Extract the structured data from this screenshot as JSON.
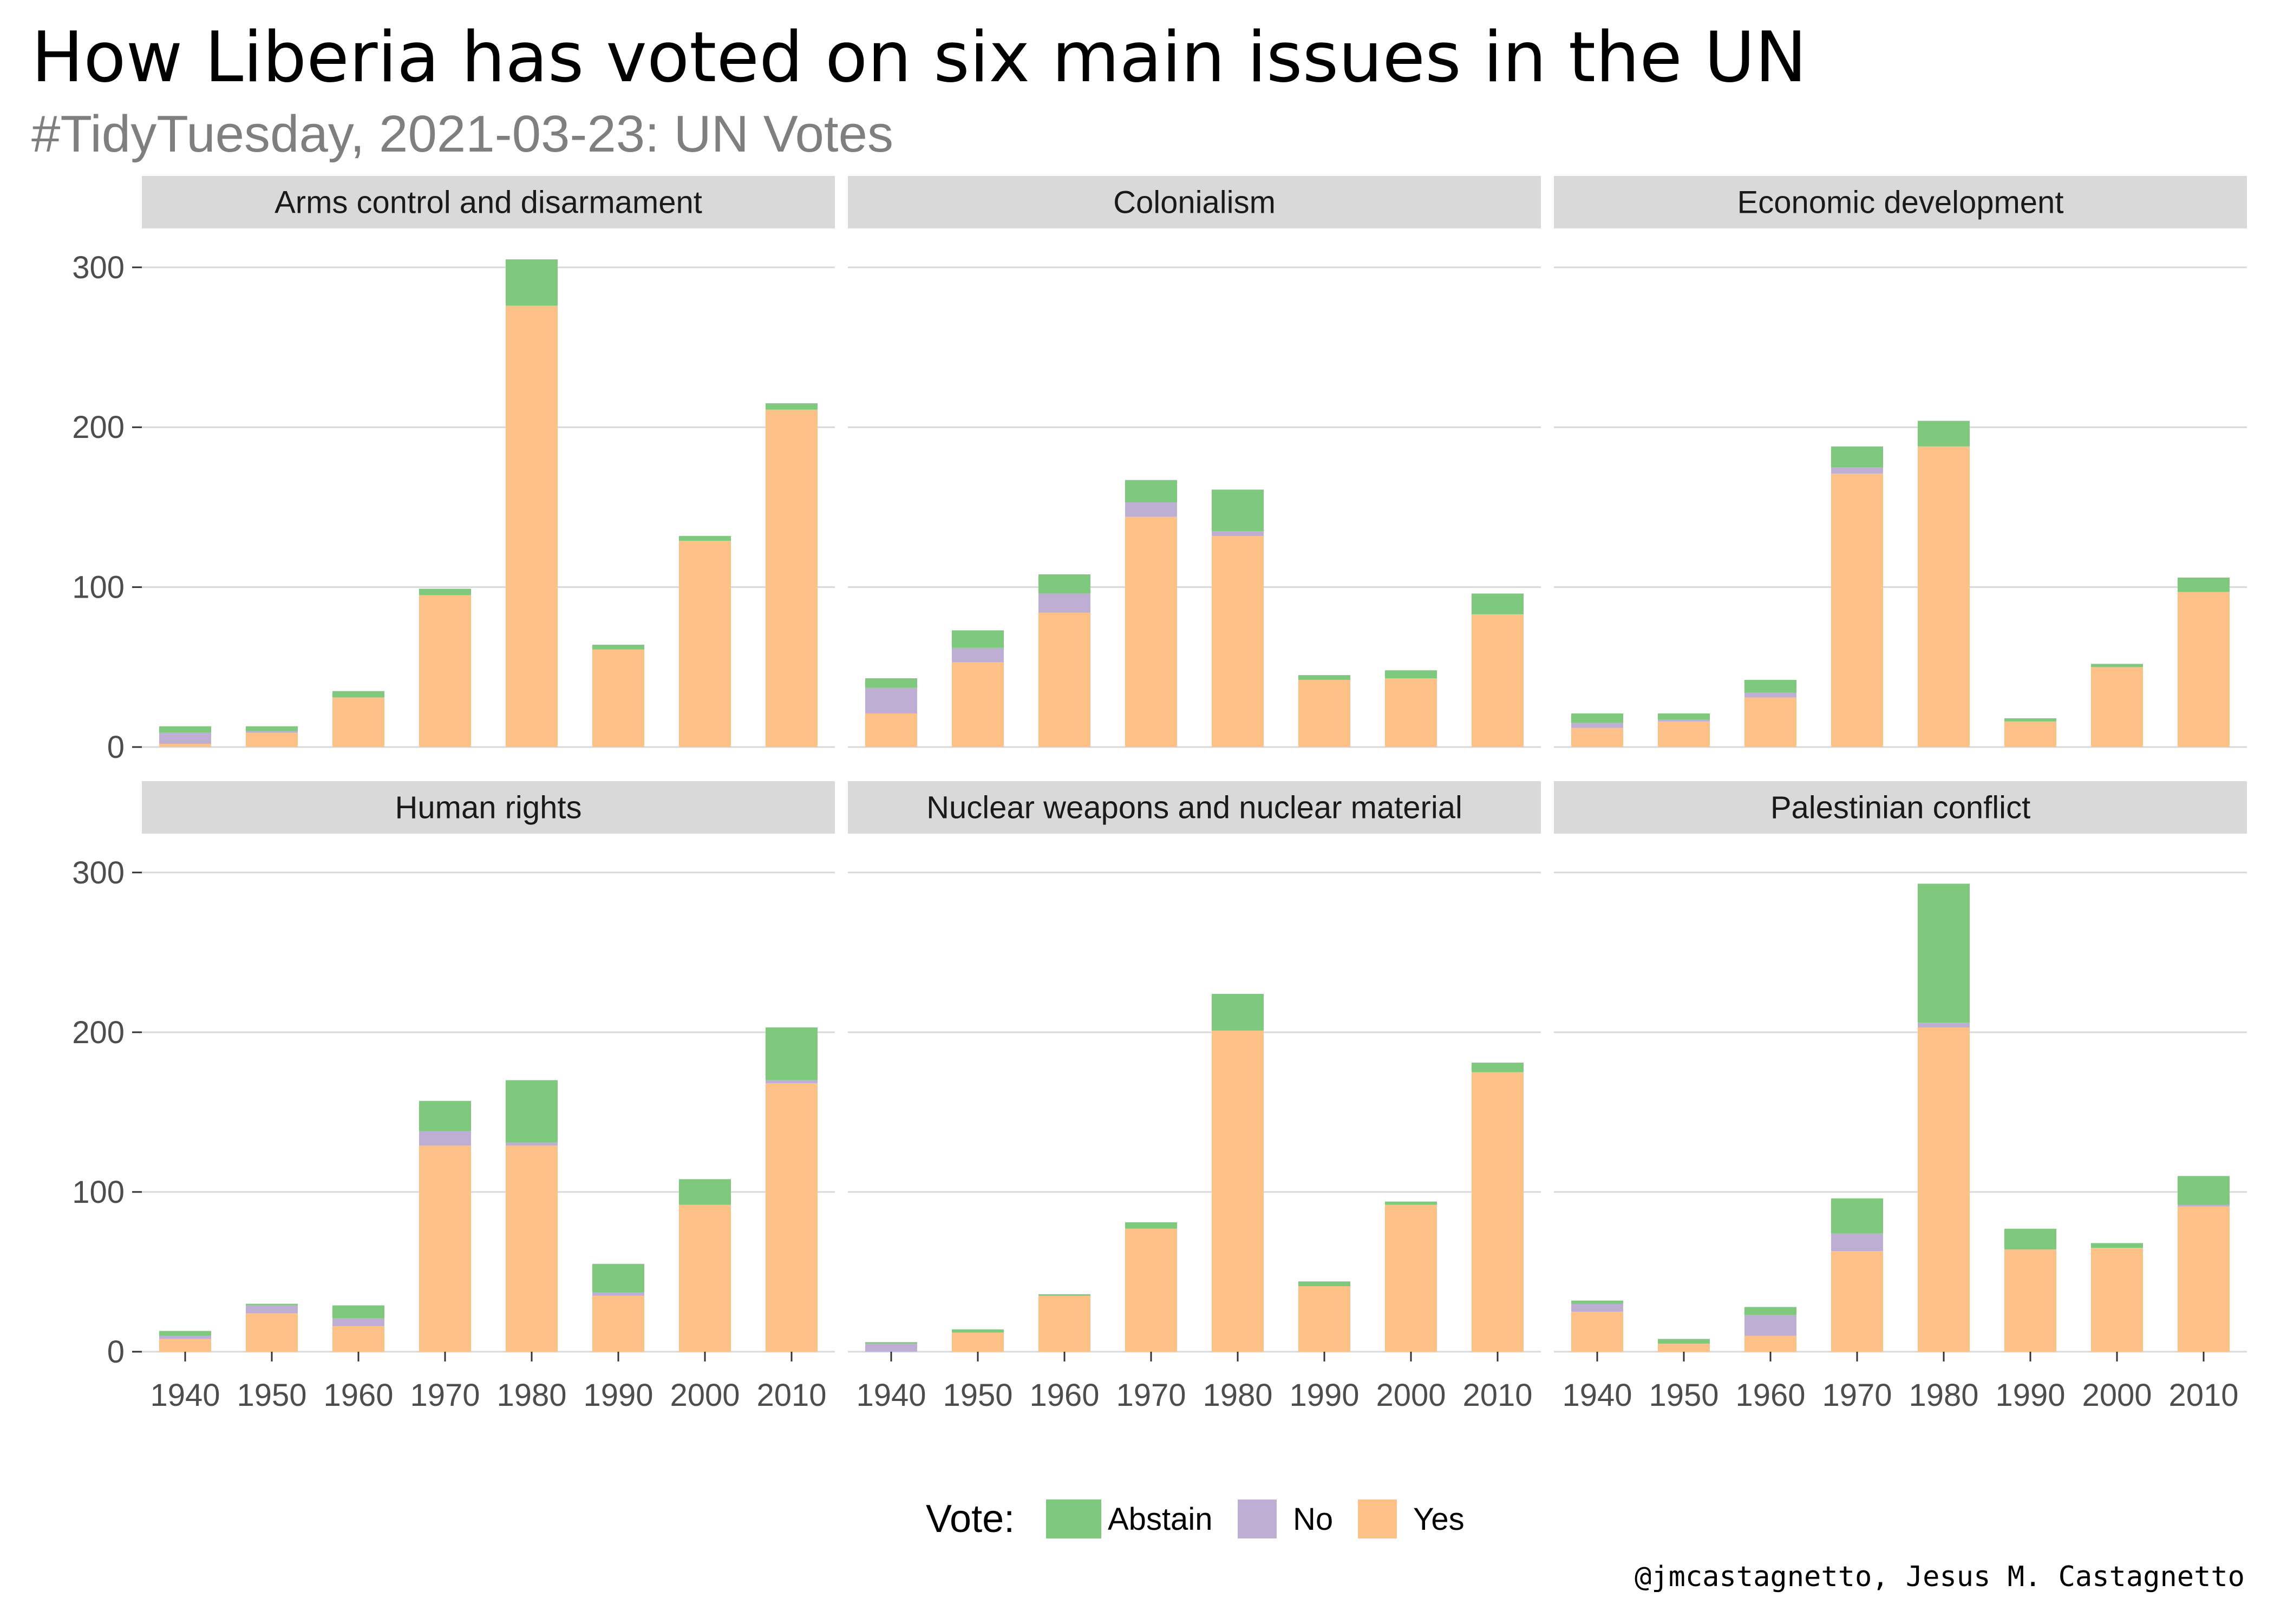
{
  "title": "How Liberia has voted on six main issues in the UN",
  "subtitle": "#TidyTuesday, 2021-03-23: UN Votes",
  "caption": "@jmcastagnetto, Jesus M. Castagnetto",
  "legend": {
    "title": "Vote:",
    "items": [
      {
        "label": "Abstain",
        "color": "#7fc97f"
      },
      {
        "label": "No",
        "color": "#beaed4"
      },
      {
        "label": "Yes",
        "color": "#fdc086"
      }
    ]
  },
  "chart_data": {
    "type": "bar",
    "stacked": true,
    "facet_grid": "2 rows x 3 columns",
    "categories": [
      "1940",
      "1950",
      "1960",
      "1970",
      "1980",
      "1990",
      "2000",
      "2010"
    ],
    "y_ticks": [
      0,
      100,
      200,
      300
    ],
    "ylim": [
      0,
      325
    ],
    "grid": true,
    "legend_position": "bottom",
    "series_order": [
      "Yes",
      "No",
      "Abstain"
    ],
    "colors": {
      "Abstain": "#7fc97f",
      "No": "#beaed4",
      "Yes": "#fdc086"
    },
    "panels": [
      {
        "title": "Arms control and disarmament",
        "series": [
          {
            "name": "Yes",
            "values": [
              2,
              9,
              31,
              95,
              276,
              61,
              129,
              211
            ]
          },
          {
            "name": "No",
            "values": [
              7,
              1,
              0,
              0,
              0,
              0,
              0,
              0
            ]
          },
          {
            "name": "Abstain",
            "values": [
              4,
              3,
              4,
              4,
              29,
              3,
              3,
              4
            ]
          }
        ]
      },
      {
        "title": "Colonialism",
        "series": [
          {
            "name": "Yes",
            "values": [
              21,
              53,
              84,
              144,
              132,
              42,
              43,
              83
            ]
          },
          {
            "name": "No",
            "values": [
              16,
              9,
              12,
              9,
              3,
              0,
              0,
              0
            ]
          },
          {
            "name": "Abstain",
            "values": [
              6,
              11,
              12,
              14,
              26,
              3,
              5,
              13
            ]
          }
        ]
      },
      {
        "title": "Economic development",
        "series": [
          {
            "name": "Yes",
            "values": [
              12,
              16,
              31,
              171,
              188,
              16,
              50,
              97
            ]
          },
          {
            "name": "No",
            "values": [
              3,
              1,
              3,
              4,
              0,
              0,
              0,
              0
            ]
          },
          {
            "name": "Abstain",
            "values": [
              6,
              4,
              8,
              13,
              16,
              2,
              2,
              9
            ]
          }
        ]
      },
      {
        "title": "Human rights",
        "series": [
          {
            "name": "Yes",
            "values": [
              8,
              24,
              16,
              129,
              129,
              35,
              92,
              168
            ]
          },
          {
            "name": "No",
            "values": [
              2,
              5,
              5,
              9,
              2,
              2,
              0,
              2
            ]
          },
          {
            "name": "Abstain",
            "values": [
              3,
              1,
              8,
              19,
              39,
              18,
              16,
              33
            ]
          }
        ]
      },
      {
        "title": "Nuclear weapons and nuclear material",
        "series": [
          {
            "name": "Yes",
            "values": [
              0,
              12,
              35,
              77,
              201,
              41,
              92,
              175
            ]
          },
          {
            "name": "No",
            "values": [
              5,
              0,
              0,
              0,
              0,
              0,
              0,
              0
            ]
          },
          {
            "name": "Abstain",
            "values": [
              1,
              2,
              1,
              4,
              23,
              3,
              2,
              6
            ]
          }
        ]
      },
      {
        "title": "Palestinian conflict",
        "series": [
          {
            "name": "Yes",
            "values": [
              25,
              5,
              10,
              63,
              203,
              64,
              65,
              91
            ]
          },
          {
            "name": "No",
            "values": [
              5,
              0,
              13,
              11,
              3,
              0,
              0,
              1
            ]
          },
          {
            "name": "Abstain",
            "values": [
              2,
              3,
              5,
              22,
              87,
              13,
              3,
              18
            ]
          }
        ]
      }
    ]
  }
}
